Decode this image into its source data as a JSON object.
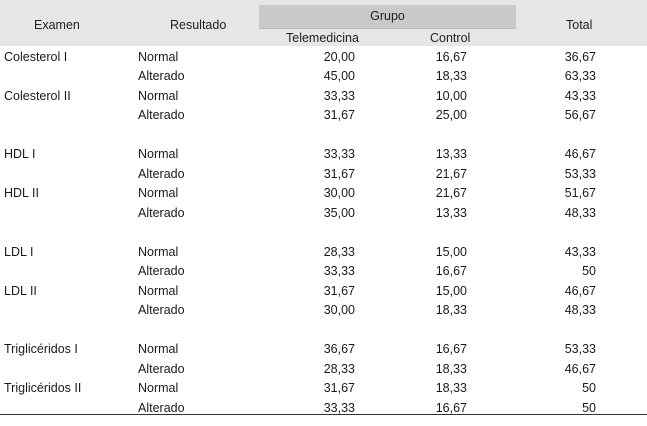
{
  "header": {
    "examen": "Examen",
    "resultado": "Resultado",
    "grupo": "Grupo",
    "telemedicina": "Telemedicina",
    "control": "Control",
    "total": "Total"
  },
  "rows": [
    {
      "exam": "Colesterol I",
      "result": "Normal",
      "tele": "20,00",
      "control": "16,67",
      "total": "36,67"
    },
    {
      "exam": "",
      "result": "Alterado",
      "tele": "45,00",
      "control": "18,33",
      "total": "63,33"
    },
    {
      "exam": "Colesterol II",
      "result": "Normal",
      "tele": "33,33",
      "control": "10,00",
      "total": "43,33"
    },
    {
      "exam": "",
      "result": "Alterado",
      "tele": "31,67",
      "control": "25,00",
      "total": "56,67"
    },
    {
      "exam": "HDL I",
      "result": "Normal",
      "tele": "33,33",
      "control": "13,33",
      "total": "46,67"
    },
    {
      "exam": "",
      "result": "Alterado",
      "tele": "31,67",
      "control": "21,67",
      "total": "53,33"
    },
    {
      "exam": "HDL II",
      "result": "Normal",
      "tele": "30,00",
      "control": "21,67",
      "total": "51,67"
    },
    {
      "exam": "",
      "result": "Alterado",
      "tele": "35,00",
      "control": "13,33",
      "total": "48,33"
    },
    {
      "exam": "LDL I",
      "result": "Normal",
      "tele": "28,33",
      "control": "15,00",
      "total": "43,33"
    },
    {
      "exam": "",
      "result": "Alterado",
      "tele": "33,33",
      "control": "16,67",
      "total": "50"
    },
    {
      "exam": "LDL II",
      "result": "Normal",
      "tele": "31,67",
      "control": "15,00",
      "total": "46,67"
    },
    {
      "exam": "",
      "result": "Alterado",
      "tele": "30,00",
      "control": "18,33",
      "total": "48,33"
    },
    {
      "exam": "Triglicéridos I",
      "result": "Normal",
      "tele": "36,67",
      "control": "16,67",
      "total": "53,33"
    },
    {
      "exam": "",
      "result": "Alterado",
      "tele": "28,33",
      "control": "18,33",
      "total": "46,67"
    },
    {
      "exam": "Triglicéridos II",
      "result": "Normal",
      "tele": "31,67",
      "control": "18,33",
      "total": "50"
    },
    {
      "exam": "",
      "result": "Alterado",
      "tele": "33,33",
      "control": "16,67",
      "total": "50"
    }
  ]
}
